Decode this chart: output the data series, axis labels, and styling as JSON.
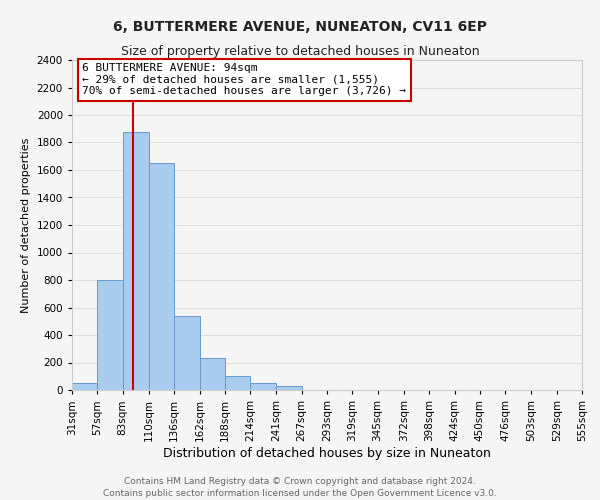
{
  "title": "6, BUTTERMERE AVENUE, NUNEATON, CV11 6EP",
  "subtitle": "Size of property relative to detached houses in Nuneaton",
  "xlabel": "Distribution of detached houses by size in Nuneaton",
  "ylabel": "Number of detached properties",
  "bar_edges": [
    31,
    57,
    83,
    110,
    136,
    162,
    188,
    214,
    241,
    267,
    293,
    319,
    345,
    372,
    398,
    424,
    450,
    476,
    503,
    529,
    555
  ],
  "bar_heights": [
    50,
    800,
    1880,
    1650,
    540,
    235,
    105,
    50,
    30,
    0,
    0,
    0,
    0,
    0,
    0,
    0,
    0,
    0,
    0,
    0
  ],
  "bar_color": "#aaccee",
  "bar_edge_color": "#6699cc",
  "property_line_x": 94,
  "property_line_color": "#cc0000",
  "annotation_line1": "6 BUTTERMERE AVENUE: 94sqm",
  "annotation_line2": "← 29% of detached houses are smaller (1,555)",
  "annotation_line3": "70% of semi-detached houses are larger (3,726) →",
  "annotation_box_color": "#ffffff",
  "annotation_border_color": "#cc0000",
  "ylim": [
    0,
    2400
  ],
  "yticks": [
    0,
    200,
    400,
    600,
    800,
    1000,
    1200,
    1400,
    1600,
    1800,
    2000,
    2200,
    2400
  ],
  "footer_line1": "Contains HM Land Registry data © Crown copyright and database right 2024.",
  "footer_line2": "Contains public sector information licensed under the Open Government Licence v3.0.",
  "grid_color": "#dddddd",
  "background_color": "#f5f5f5",
  "title_fontsize": 10,
  "subtitle_fontsize": 9,
  "xlabel_fontsize": 9,
  "ylabel_fontsize": 8,
  "tick_label_fontsize": 7.5,
  "annotation_fontsize": 8,
  "footer_fontsize": 6.5
}
